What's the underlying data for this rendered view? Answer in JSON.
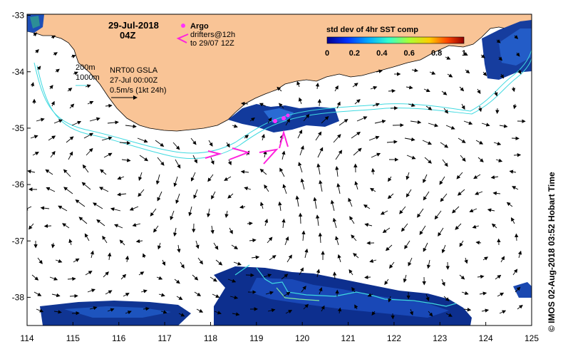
{
  "map": {
    "date": "29-Jul-2018",
    "time": "04Z",
    "legend": {
      "argo": "Argo",
      "drifters_line1": "drifters@12h",
      "drifters_line2": "to 29/07 12Z"
    },
    "isobaths": {
      "a": "200m",
      "b": "1000m"
    },
    "product": {
      "line1": "NRT00 GSLA",
      "line2": "27-Jul 00:00Z",
      "line3": "0.5m/s (1kt 24h)"
    },
    "colorbar": {
      "title": "std dev of 4hr SST comp",
      "ticks": [
        "0",
        "0.2",
        "0.4",
        "0.6",
        "0.8",
        "1"
      ]
    },
    "credit": "© IMOS 02-Aug-2018 03:52 Hobart Time",
    "x_ticks": [
      "114",
      "115",
      "116",
      "117",
      "118",
      "119",
      "120",
      "121",
      "122",
      "123",
      "124",
      "125"
    ],
    "y_ticks": [
      "-33",
      "-34",
      "-35",
      "-36",
      "-37",
      "-38"
    ],
    "colors": {
      "land": "#f9c496",
      "isobath": "#3fd9e0",
      "argo": "#ff33ff",
      "drifter": "#ff22dd",
      "sst_dark": "#0a2d8c",
      "sst_mid": "#1f55c8"
    },
    "icons": [
      "argo-marker-icon",
      "drifter-chevron-icon",
      "velocity-scale-arrow-icon"
    ]
  }
}
